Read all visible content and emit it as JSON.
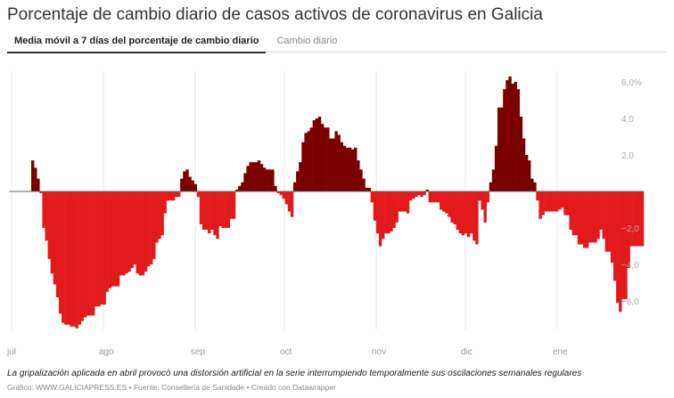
{
  "title": "Porcentaje de cambio diario de casos activos de coronavirus en Galicia",
  "tabs": [
    {
      "label": "Media móvil a 7 días del porcentaje de cambio diario",
      "active": true
    },
    {
      "label": "Cambio diario",
      "active": false
    }
  ],
  "colors": {
    "positive": "#7a0000",
    "negative": "#e31a1c",
    "baseline": "#666666",
    "grid": "#e6e6e6"
  },
  "chart_data": {
    "type": "bar",
    "title": "Porcentaje de cambio diario de casos activos de coronavirus en Galicia",
    "xlabel": "",
    "ylabel": "",
    "x_ticks": [
      "jul",
      "ago",
      "sep",
      "oct",
      "nov",
      "dic",
      "ene"
    ],
    "y_ticks": [
      {
        "value": 6,
        "label": "6,0%"
      },
      {
        "value": 4,
        "label": "4,0"
      },
      {
        "value": 2,
        "label": "2,0"
      },
      {
        "value": -2,
        "label": "−2,0"
      },
      {
        "value": -4,
        "label": "−4,0"
      },
      {
        "value": -6,
        "label": "−6,0"
      }
    ],
    "ylim": [
      -7.5,
      6.5
    ],
    "grid": "vertical month lines",
    "values": [
      1.7,
      1.3,
      0.7,
      -0.1,
      -2.0,
      -2.7,
      -3.7,
      -4.5,
      -5.1,
      -5.8,
      -6.7,
      -7.2,
      -7.3,
      -7.3,
      -7.4,
      -7.4,
      -7.5,
      -7.3,
      -7.1,
      -6.9,
      -6.8,
      -6.8,
      -6.8,
      -6.3,
      -6.3,
      -6.2,
      -6.2,
      -5.5,
      -5.3,
      -5.2,
      -5.2,
      -5.2,
      -4.6,
      -4.6,
      -4.5,
      -4.4,
      -4.2,
      -4.0,
      -4.5,
      -4.6,
      -4.6,
      -4.4,
      -4.1,
      -4.0,
      -3.7,
      -2.8,
      -2.6,
      -2.4,
      -1.2,
      -0.5,
      -0.5,
      -0.5,
      -0.3,
      -0.3,
      0.7,
      1.1,
      1.2,
      0.8,
      0.6,
      0.4,
      -0.3,
      -1.8,
      -2.1,
      -2.1,
      -2.3,
      -2.1,
      -2.4,
      -2.6,
      -1.9,
      -2.0,
      -2.0,
      -2.0,
      -1.5,
      -1.5,
      0.1,
      0.3,
      0.5,
      1.0,
      1.4,
      1.6,
      1.6,
      1.6,
      1.7,
      1.5,
      1.3,
      1.2,
      1.2,
      1.2,
      0.3,
      -0.1,
      -0.2,
      -0.4,
      -0.7,
      -1.1,
      -1.4,
      0.5,
      1.1,
      1.6,
      2.7,
      3.2,
      3.3,
      3.5,
      3.9,
      4.0,
      4.1,
      3.7,
      3.5,
      3.5,
      2.9,
      2.9,
      3.3,
      3.1,
      2.7,
      2.5,
      2.4,
      2.4,
      2.3,
      2.4,
      1.7,
      1.2,
      0.7,
      0.2,
      0.2,
      -0.6,
      -1.6,
      -2.3,
      -3.0,
      -2.6,
      -2.3,
      -2.3,
      -2.2,
      -2.0,
      -1.7,
      -1.1,
      -1.1,
      -1.1,
      -1.2,
      -0.5,
      -0.4,
      -0.3,
      -0.2,
      -0.3,
      -0.2,
      0.1,
      -0.6,
      -0.6,
      -0.6,
      -0.6,
      -1.0,
      -1.1,
      -1.2,
      -1.4,
      -1.7,
      -1.8,
      -2.1,
      -2.3,
      -2.4,
      -2.3,
      -2.5,
      -2.3,
      -2.7,
      -2.9,
      -0.5,
      -1.0,
      -1.7,
      -0.6,
      0.5,
      1.2,
      2.5,
      4.6,
      4.6,
      5.6,
      6.1,
      6.3,
      5.9,
      6.0,
      5.6,
      4.1,
      2.9,
      2.0,
      1.7,
      0.7,
      0.5,
      -0.5,
      -1.5,
      -1.3,
      -1.1,
      -1.1,
      -1.1,
      -1.1,
      -1.1,
      -1.0,
      -0.9,
      -1.3,
      -1.3,
      -2.1,
      -2.4,
      -2.4,
      -2.9,
      -2.9,
      -3.1,
      -3.1,
      -2.8,
      -2.8,
      -2.8,
      -2.6,
      -2.1,
      -2.6,
      -3.3,
      -3.3,
      -3.9,
      -4.9,
      -6.1,
      -6.6,
      -5.9,
      -5.9,
      -4.2,
      -3.0,
      -3.0,
      -3.0,
      -3.0,
      -3.0
    ]
  },
  "footer": {
    "note": "La gripalización aplicada en abril provocó una distorsión artificial en la serie interrumpiendo temporalmente sus oscilaciones semanales regulares",
    "credit": "Gráfico: WWW.GALICIAPRESS.ES • Fuente: Consellería de Sanidade • Creado con Datawrapper"
  }
}
